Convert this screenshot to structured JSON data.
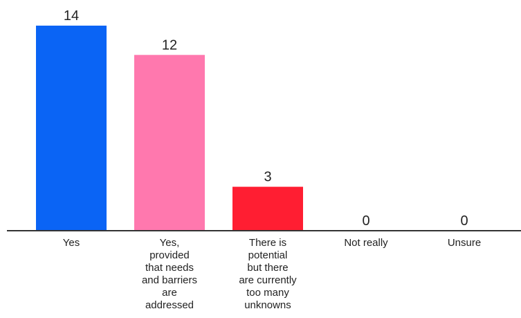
{
  "chart_data": {
    "type": "bar",
    "categories": [
      "Yes",
      "Yes, provided that needs and barriers are addressed",
      "There is potential but there are currently too many unknowns",
      "Not really",
      "Unsure"
    ],
    "category_lines": [
      [
        "Yes"
      ],
      [
        "Yes,",
        "provided",
        "that needs",
        "and barriers",
        "are",
        "addressed"
      ],
      [
        "There is",
        "potential",
        "but there",
        "are currently",
        "too many",
        "unknowns"
      ],
      [
        "Not really"
      ],
      [
        "Unsure"
      ]
    ],
    "values": [
      14,
      12,
      3,
      0,
      0
    ],
    "colors": [
      "#0a64f5",
      "#ff78ae",
      "#ff1e32",
      "#0a64f5",
      "#0a64f5"
    ],
    "ylim": [
      0,
      14
    ],
    "grid": false,
    "title": "",
    "xlabel": "",
    "ylabel": ""
  }
}
